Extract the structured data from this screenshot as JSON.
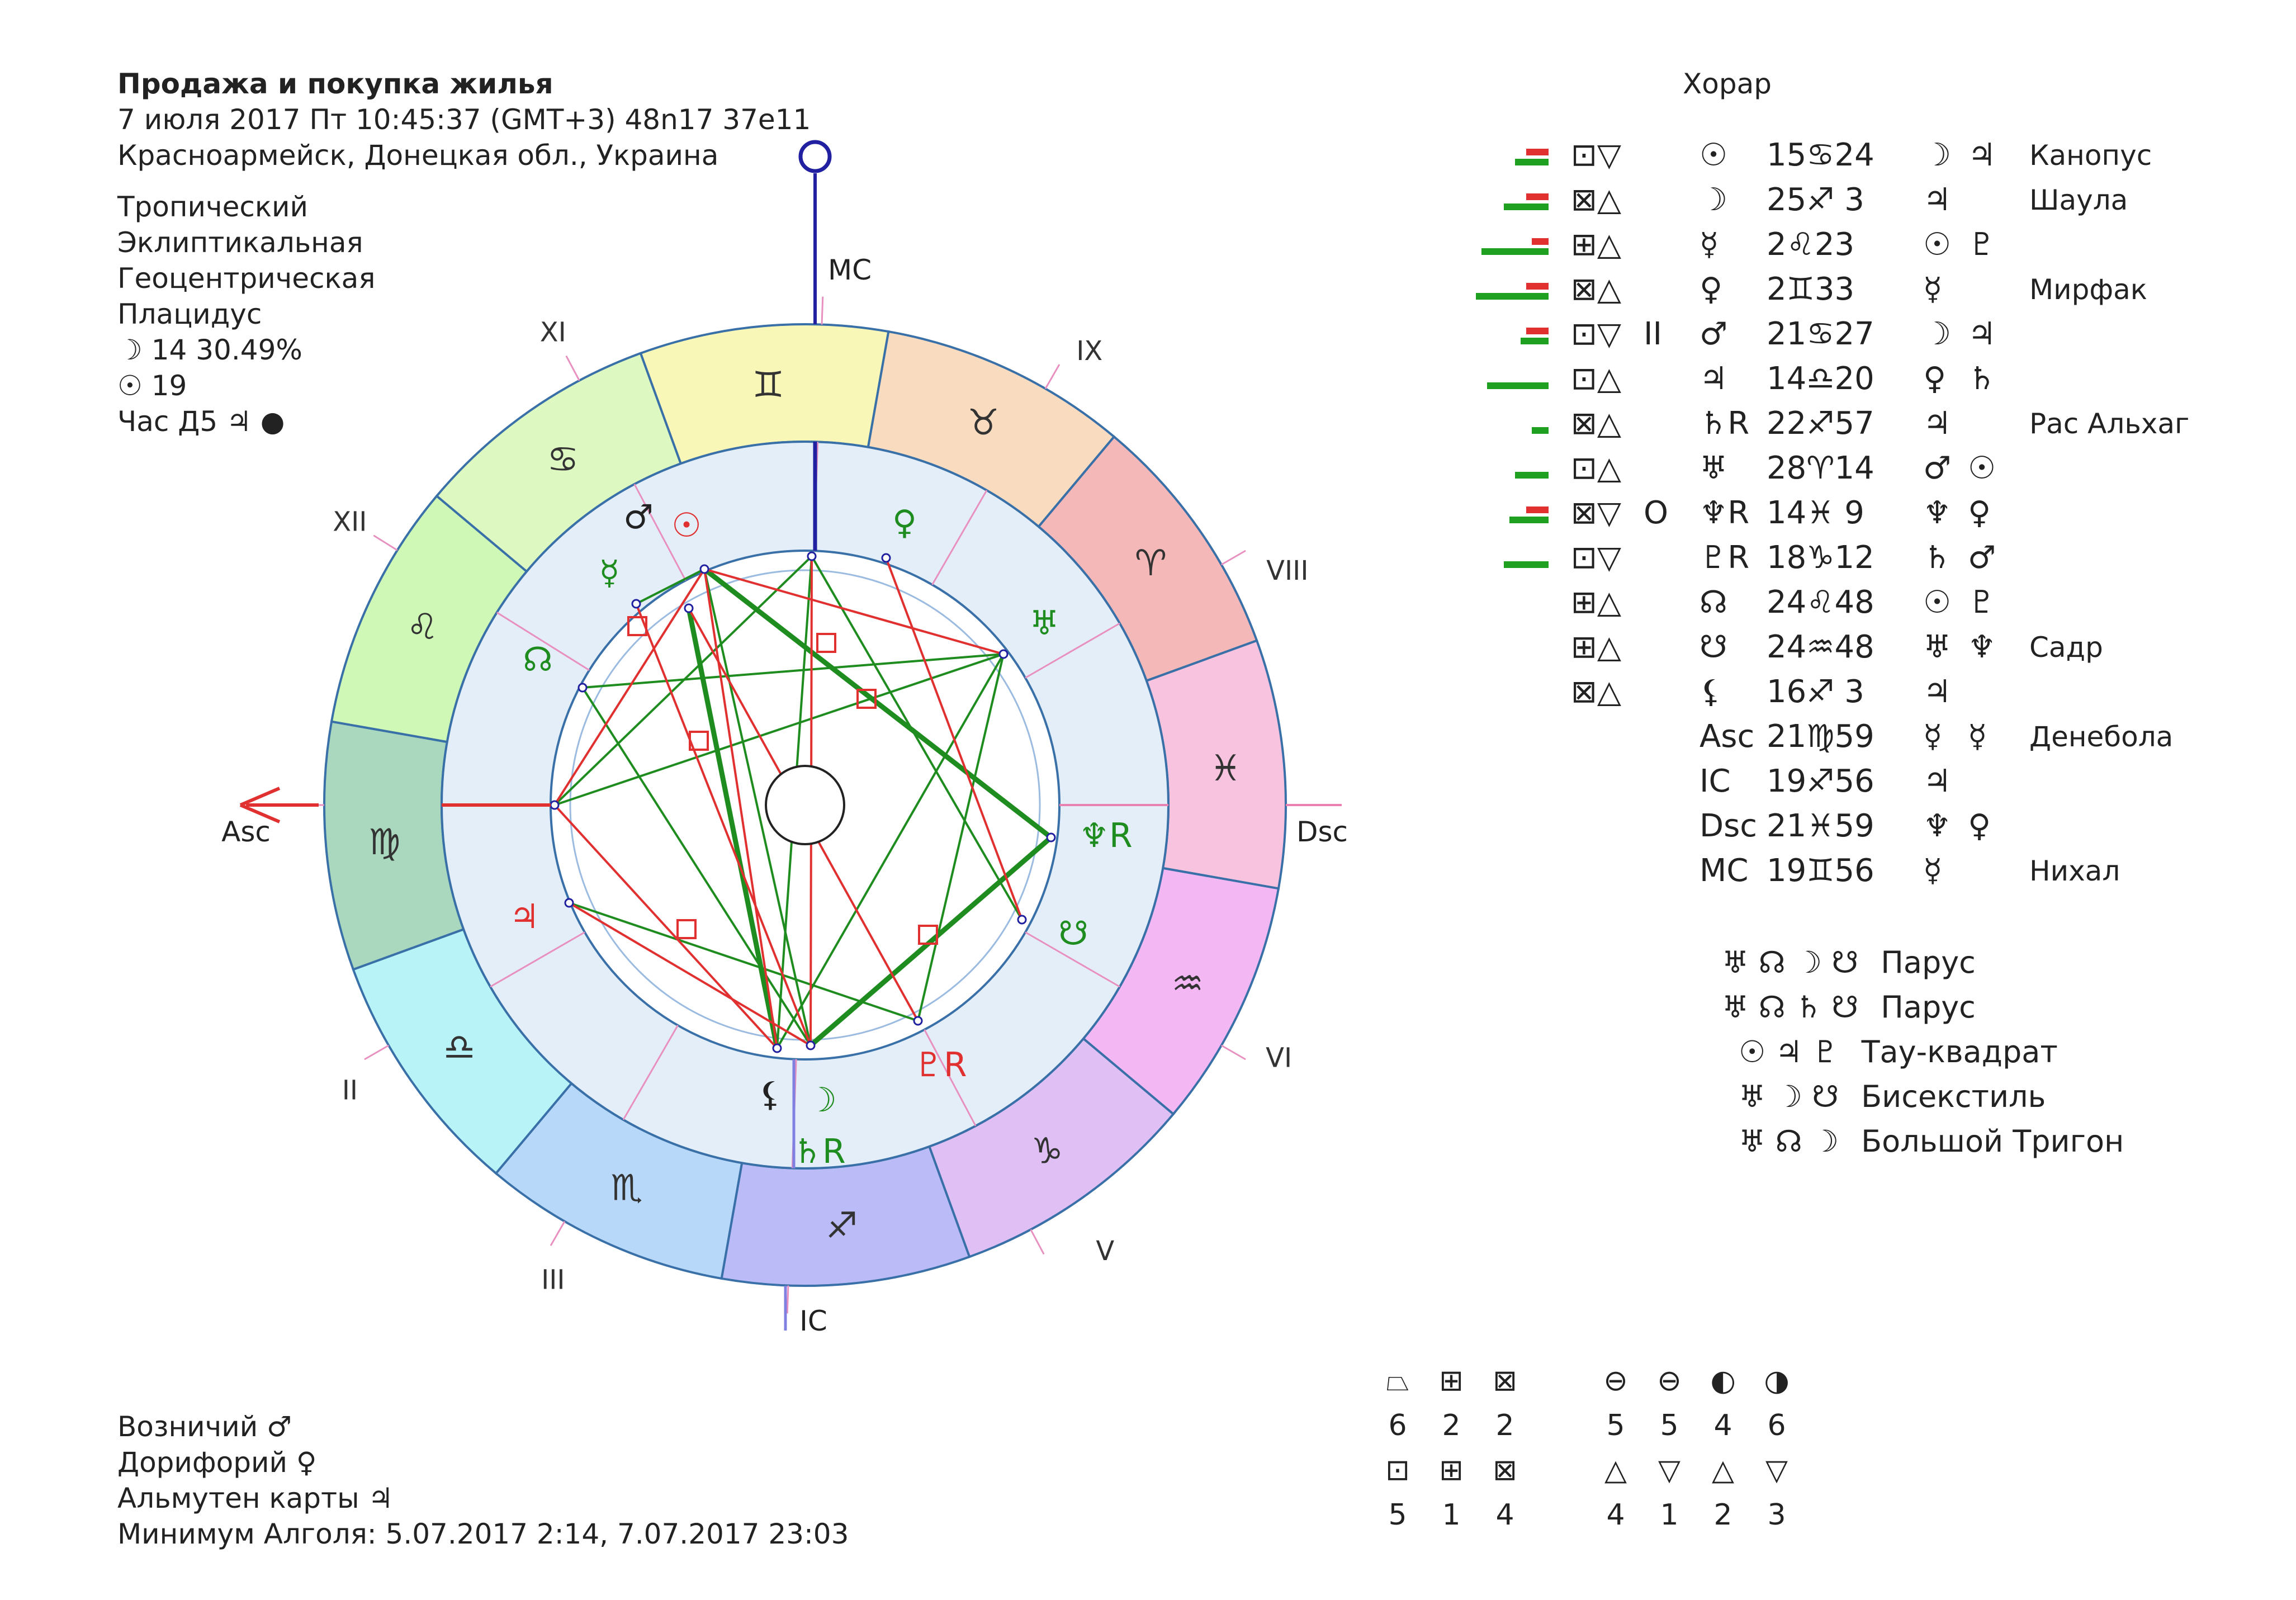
{
  "header": {
    "title": "Продажа и покупка жилья",
    "datetime": "7 июля 2017  Пт  10:45:37 (GMT+3) 48n17  37e11",
    "location": "Красноармейск, Донецкая обл., Украина"
  },
  "settings": {
    "zodiac": "Тропический",
    "coords": "Эклиптикальная",
    "center": "Геоцентрическая",
    "houses": "Плацидус",
    "moon_day": "☽  14 30.49%",
    "sun_day": "☉  19",
    "planet_hour": "Час Д5  ♃ ●"
  },
  "chart_type": "Хорар",
  "wheel": {
    "axis_labels": {
      "mc": "MC",
      "ic": "IC",
      "asc": "Asc",
      "dsc": "Dsc"
    },
    "houses": [
      "XI",
      "IX",
      "XII",
      "VIII",
      "II",
      "VI",
      "III",
      "V"
    ],
    "zodiac_signs": [
      "♊",
      "♉",
      "♈",
      "♓",
      "♒",
      "♑",
      "♐",
      "♏",
      "♎",
      "♍",
      "♌",
      "♋"
    ],
    "planets_inside": [
      "♂",
      "☉",
      "♀",
      "☿",
      "♅",
      "☊",
      "♆R",
      "♃",
      "☋",
      "♇R",
      "⚸",
      "☽",
      "♄R"
    ]
  },
  "planet_rows": [
    {
      "aspect": "⊡▽",
      "mark": "",
      "planet": "☉",
      "pos": "15♋24",
      "r1": "☽",
      "r2": "♃",
      "star": "Канопус"
    },
    {
      "aspect": "⊠△",
      "mark": "",
      "planet": "☽",
      "pos": "25♐ 3",
      "r1": "♃",
      "r2": "",
      "star": "Шаула"
    },
    {
      "aspect": "⊞△",
      "mark": "",
      "planet": "☿",
      "pos": " 2♌23",
      "r1": "☉",
      "r2": "♇",
      "star": ""
    },
    {
      "aspect": "⊠△",
      "mark": "",
      "planet": "♀",
      "pos": " 2♊33",
      "r1": "☿",
      "r2": "",
      "star": "Мирфак"
    },
    {
      "aspect": "⊡▽",
      "mark": "II",
      "planet": "♂",
      "pos": "21♋27",
      "r1": "☽",
      "r2": "♃",
      "star": ""
    },
    {
      "aspect": "⊡△",
      "mark": "",
      "planet": "♃",
      "pos": "14♎20",
      "r1": "♀",
      "r2": "♄",
      "star": ""
    },
    {
      "aspect": "⊠△",
      "mark": "",
      "planet": "♄R",
      "pos": "22♐57",
      "r1": "♃",
      "r2": "",
      "star": "Рас Альхаг"
    },
    {
      "aspect": "⊡△",
      "mark": "",
      "planet": "♅",
      "pos": "28♈14",
      "r1": "♂",
      "r2": "☉",
      "star": ""
    },
    {
      "aspect": "⊠▽",
      "mark": "O",
      "planet": "♆R",
      "pos": "14♓ 9",
      "r1": "♆",
      "r2": "♀",
      "star": ""
    },
    {
      "aspect": "⊡▽",
      "mark": "",
      "planet": "♇R",
      "pos": "18♑12",
      "r1": "♄",
      "r2": "♂",
      "star": ""
    },
    {
      "aspect": "⊞△",
      "mark": "",
      "planet": "☊",
      "pos": "24♌48",
      "r1": "☉",
      "r2": "♇",
      "star": ""
    },
    {
      "aspect": "⊞△",
      "mark": "",
      "planet": "☋",
      "pos": "24♒48",
      "r1": "♅",
      "r2": "♆",
      "star": "Садр"
    },
    {
      "aspect": "⊠△",
      "mark": "",
      "planet": "⚸",
      "pos": "16♐ 3",
      "r1": "♃",
      "r2": "",
      "star": ""
    },
    {
      "aspect": "",
      "mark": "",
      "planet": "Asc",
      "pos": "21♍59",
      "r1": "☿",
      "r2": "☿",
      "star": "Денебола"
    },
    {
      "aspect": "",
      "mark": "",
      "planet": "IC",
      "pos": "19♐56",
      "r1": "♃",
      "r2": "",
      "star": ""
    },
    {
      "aspect": "",
      "mark": "",
      "planet": "Dsc",
      "pos": "21♓59",
      "r1": "♆",
      "r2": "♀",
      "star": ""
    },
    {
      "aspect": "",
      "mark": "",
      "planet": "MC",
      "pos": "19♊56",
      "r1": "☿",
      "r2": "",
      "star": "Нихал"
    }
  ],
  "figures": [
    {
      "glyphs": "♅ ☊ ☽ ☋",
      "name": "Парус"
    },
    {
      "glyphs": "♅ ☊ ♄ ☋",
      "name": "Парус"
    },
    {
      "glyphs": "☉ ♃ ♇",
      "name": "Тау-квадрат"
    },
    {
      "glyphs": "♅ ☽ ☋",
      "name": "Бисекстиль"
    },
    {
      "glyphs": "♅ ☊ ☽",
      "name": "Большой Тригон"
    }
  ],
  "footer": {
    "vozn": "Возничий ♂",
    "dorif": "Дорифорий ♀",
    "almuten": "Альмутен карты ♃",
    "algol": "Минимум Алголя: 5.07.2017  2:14,  7.07.2017 23:03"
  },
  "stats": {
    "group1": {
      "icons": [
        "⏢",
        "⊞",
        "⊠"
      ],
      "values": [
        "6",
        "2",
        "2"
      ]
    },
    "group2": {
      "icons": [
        "⊖",
        "⊖",
        "◐",
        "◑"
      ],
      "values": [
        "5",
        "5",
        "4",
        "6"
      ]
    },
    "group3": {
      "icons": [
        "⊡",
        "⊞",
        "⊠"
      ],
      "values": [
        "5",
        "1",
        "4"
      ]
    },
    "group4": {
      "icons": [
        "△",
        "▽",
        "△",
        "▽"
      ],
      "values": [
        "4",
        "1",
        "2",
        "3"
      ]
    }
  },
  "colors": {
    "red": "#e03030",
    "green": "#1e8c1e",
    "blue": "#2020a0"
  }
}
